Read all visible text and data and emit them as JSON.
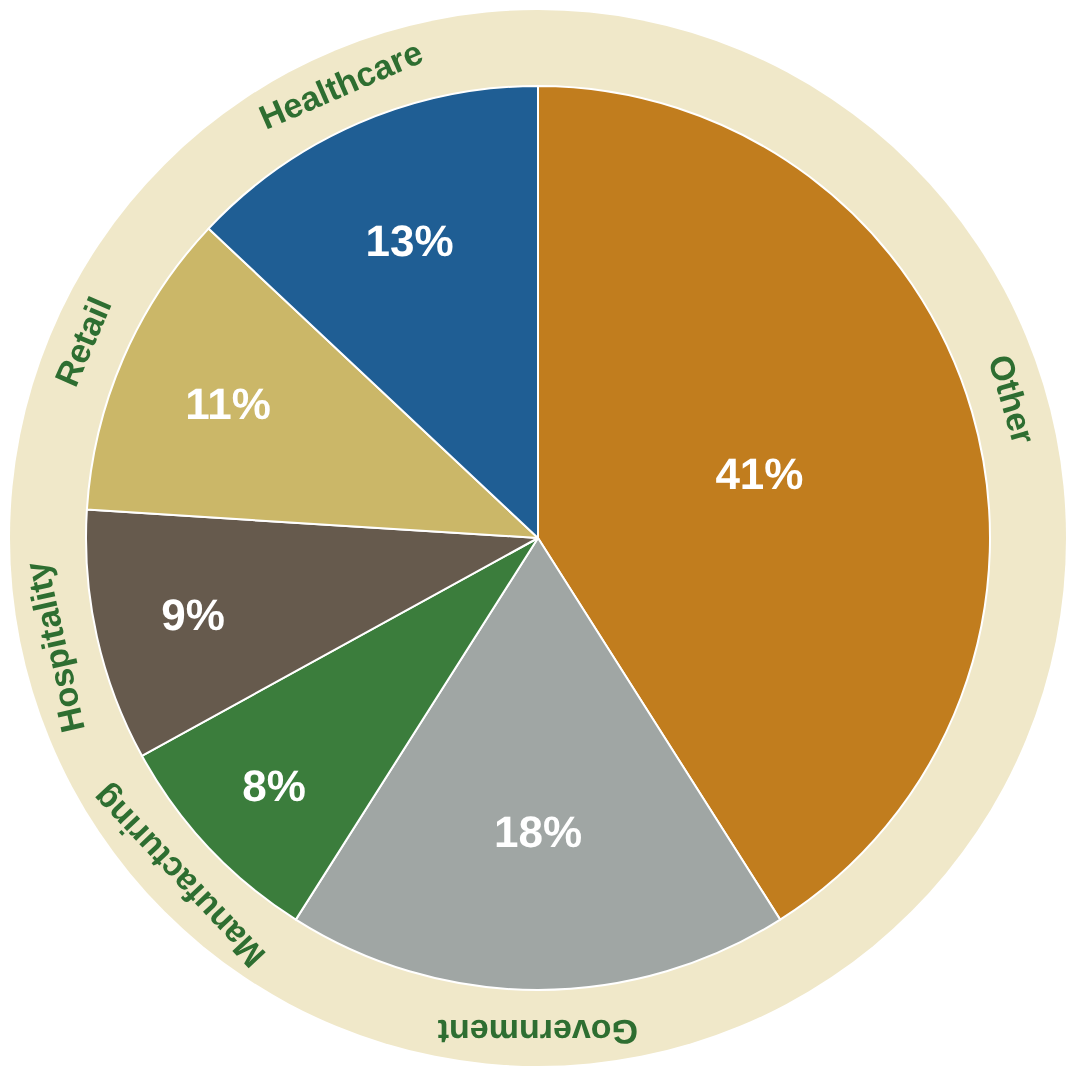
{
  "chart_data": {
    "type": "pie",
    "categories": [
      "Other",
      "Government",
      "Manufacturing",
      "Hospitality",
      "Retail",
      "Healthcare"
    ],
    "values": [
      41,
      18,
      8,
      9,
      11,
      13
    ],
    "value_labels": [
      "41%",
      "18%",
      "8%",
      "9%",
      "11%",
      "13%"
    ],
    "colors": [
      "#c17d1e",
      "#a0a6a4",
      "#3b7d3c",
      "#665a4d",
      "#cbb768",
      "#1f5e94"
    ],
    "legend": false
  }
}
